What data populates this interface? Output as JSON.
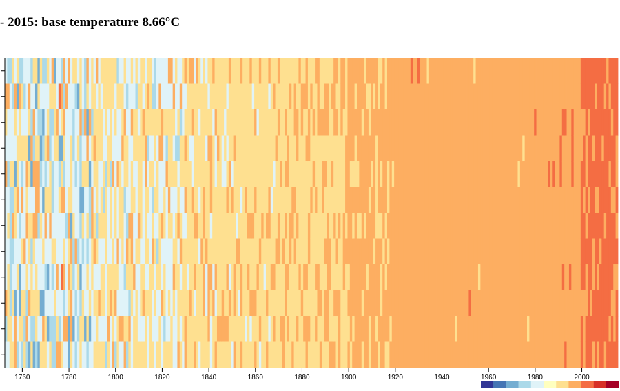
{
  "page": {
    "title": "- 2015: base temperature 8.66°C"
  },
  "chart_data": {
    "type": "heatmap",
    "title": "- 2015: base temperature 8.66°C",
    "base_temperature": 8.66,
    "x_start_year": 1753,
    "x_end_year": 2015,
    "xlim": [
      1753,
      2015
    ],
    "rows": 12,
    "x_ticks": [
      1760,
      1780,
      1800,
      1820,
      1840,
      1860,
      1880,
      1900,
      1920,
      1940,
      1960,
      1980,
      2000
    ],
    "legend": {
      "position": "bottom-right",
      "colors": [
        "#313695",
        "#4575b4",
        "#74add1",
        "#abd9e9",
        "#e0f3f8",
        "#ffffbf",
        "#fee090",
        "#fdae61",
        "#f46d43",
        "#d73027",
        "#a50026"
      ]
    },
    "cell_colors": [
      "#313695",
      "#4575b4",
      "#74add1",
      "#abd9e9",
      "#e0f3f8",
      "#fee090",
      "#fdae61",
      "#f46d43",
      "#d73027",
      "#a50026"
    ]
  }
}
